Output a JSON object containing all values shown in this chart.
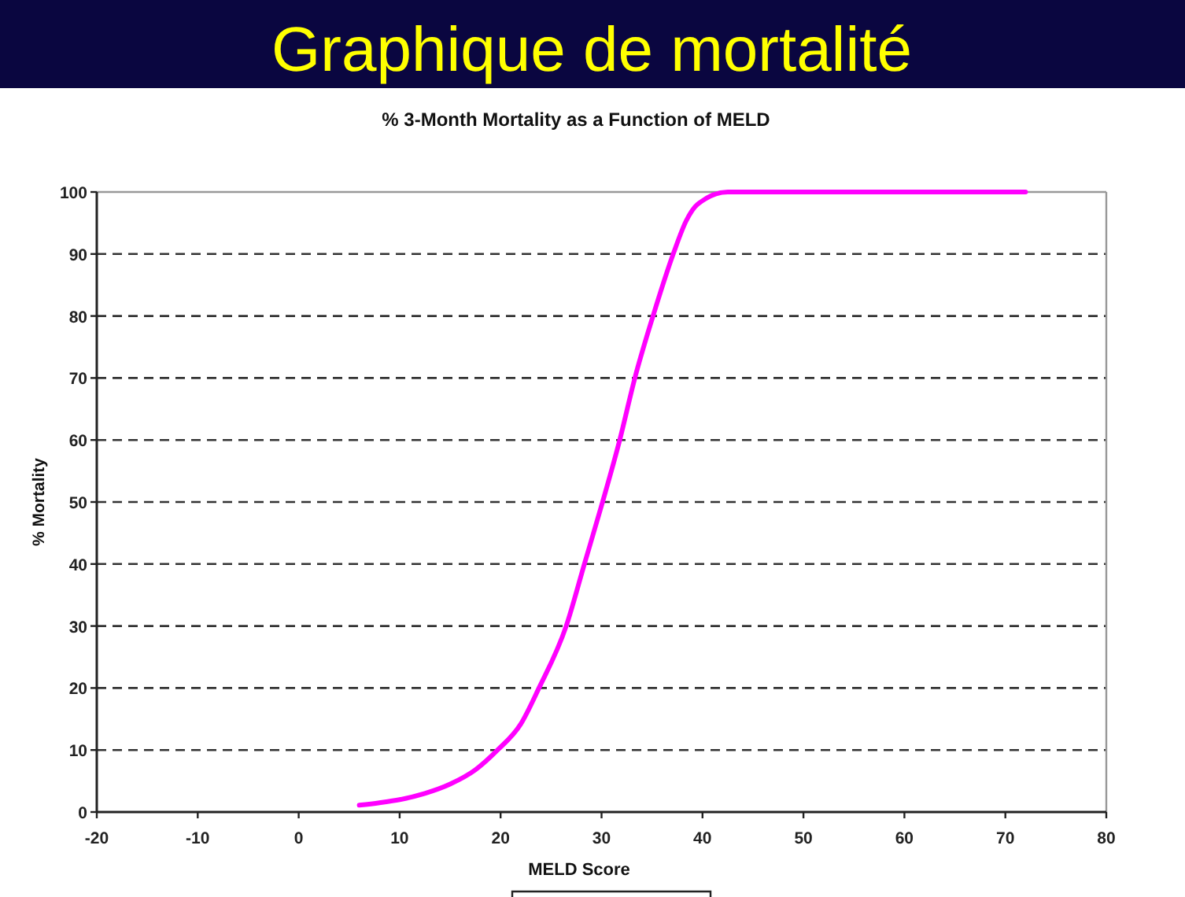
{
  "chart_data": {
    "type": "line",
    "title": "Graphique de mortalité",
    "subtitle": "% 3-Month Mortality as a Function of MELD",
    "xlabel": "MELD Score",
    "ylabel": "% Mortality",
    "x": [
      6,
      8,
      10,
      12.5,
      15,
      17.5,
      19.7,
      22,
      23.8,
      26.5,
      28.3,
      30.1,
      31.8,
      33.3,
      35.1,
      37.1,
      38.4,
      39.5,
      42.5,
      72
    ],
    "series": [
      {
        "color": "#ff00ff",
        "values": [
          1.1,
          1.5,
          2,
          3,
          4.5,
          6.8,
          10,
          14.2,
          20,
          30,
          40,
          50,
          60,
          70,
          80,
          90,
          95.4,
          98,
          100,
          100
        ]
      }
    ],
    "xlim": [
      -20,
      80
    ],
    "xticks": [
      -20,
      -10,
      0,
      10,
      20,
      30,
      40,
      50,
      60,
      70,
      80
    ],
    "ylim": [
      0,
      100
    ],
    "yticks": [
      0,
      10,
      20,
      30,
      40,
      50,
      60,
      70,
      80,
      90,
      100
    ],
    "grid": "y",
    "line_style": "solid",
    "marker": "none"
  }
}
